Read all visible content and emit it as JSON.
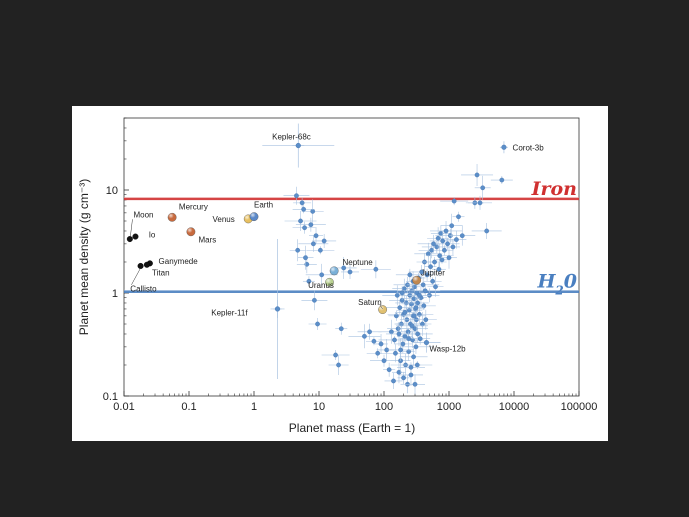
{
  "chart_data": {
    "type": "scatter",
    "xlabel": "Planet mass (Earth = 1)",
    "ylabel": "Planet mean density (g cm⁻³)",
    "x_scale": "log",
    "y_scale": "log",
    "xlim": [
      0.01,
      100000
    ],
    "ylim": [
      0.1,
      50
    ],
    "x_ticks": [
      "0.01",
      "0.1",
      "1",
      "10",
      "100",
      "1000",
      "10000",
      "100000"
    ],
    "y_ticks": [
      "0.1",
      "1",
      "10"
    ],
    "reference_lines": [
      {
        "label": "Iron",
        "y": 8.2,
        "color": "#d03030"
      },
      {
        "label": "H",
        "subscript": "2",
        "suffix": "0",
        "y": 1.03,
        "color": "#4a7fc0"
      }
    ],
    "solar_system": [
      {
        "name": "Moon",
        "mass": 0.0123,
        "density": 3.34,
        "color": "#111111",
        "label_mass": 0.014,
        "label_density": 5.8
      },
      {
        "name": "Io",
        "mass": 0.015,
        "density": 3.53,
        "color": "#111111",
        "label_mass": 0.024,
        "label_density": 3.7
      },
      {
        "name": "Ganymede",
        "mass": 0.025,
        "density": 1.94,
        "color": "#111111",
        "label_mass": 0.034,
        "label_density": 2.05
      },
      {
        "name": "Titan",
        "mass": 0.0225,
        "density": 1.88,
        "color": "#111111",
        "label_mass": 0.027,
        "label_density": 1.58
      },
      {
        "name": "Callisto",
        "mass": 0.018,
        "density": 1.83,
        "color": "#111111",
        "label_mass": 0.0125,
        "label_density": 1.1
      },
      {
        "name": "Mercury",
        "mass": 0.055,
        "density": 5.43,
        "color": "#c86a3e",
        "label_mass": 0.07,
        "label_density": 6.9
      },
      {
        "name": "Mars",
        "mass": 0.107,
        "density": 3.93,
        "color": "#c86a3e",
        "label_mass": 0.14,
        "label_density": 3.3
      },
      {
        "name": "Venus",
        "mass": 0.815,
        "density": 5.24,
        "color": "#e8c060",
        "label_mass": 0.23,
        "label_density": 5.2
      },
      {
        "name": "Earth",
        "mass": 1.0,
        "density": 5.51,
        "color": "#5b88c8",
        "label_mass": 1.0,
        "label_density": 7.2
      },
      {
        "name": "Neptune",
        "mass": 17.1,
        "density": 1.64,
        "color": "#7ab0d8",
        "label_mass": 23,
        "label_density": 2.0
      },
      {
        "name": "Uranus",
        "mass": 14.5,
        "density": 1.27,
        "color": "#b8d090",
        "label_mass": 6.8,
        "label_density": 1.2
      },
      {
        "name": "Saturn",
        "mass": 95.2,
        "density": 0.69,
        "color": "#e0c070",
        "label_mass": 40,
        "label_density": 0.82
      },
      {
        "name": "Jupiter",
        "mass": 318,
        "density": 1.33,
        "color": "#c08850",
        "label_mass": 370,
        "label_density": 1.58
      }
    ],
    "labeled_exoplanets": [
      {
        "name": "Kepler-68c",
        "mass": 4.8,
        "density": 27,
        "label_mass": 1.9,
        "label_density": 33
      },
      {
        "name": "Corot-3b",
        "mass": 7000,
        "density": 26,
        "label_mass": 9500,
        "label_density": 26
      },
      {
        "name": "Kepler-11f",
        "mass": 2.3,
        "density": 0.7,
        "label_mass": 0.22,
        "label_density": 0.65
      },
      {
        "name": "Wasp-12b",
        "mass": 450,
        "density": 0.33,
        "label_mass": 500,
        "label_density": 0.29
      }
    ],
    "exoplanets": [
      [
        4.8,
        27
      ],
      [
        4.5,
        8.8
      ],
      [
        5.5,
        7.5
      ],
      [
        5.2,
        5.0
      ],
      [
        6.0,
        4.3
      ],
      [
        4.7,
        2.6
      ],
      [
        7.5,
        4.6
      ],
      [
        8.0,
        6.2
      ],
      [
        9.0,
        3.6
      ],
      [
        10.5,
        2.6
      ],
      [
        6.5,
        1.9
      ],
      [
        7.0,
        1.3
      ],
      [
        8.5,
        0.85
      ],
      [
        9.5,
        0.5
      ],
      [
        11,
        1.5
      ],
      [
        12,
        3.2
      ],
      [
        6.2,
        2.2
      ],
      [
        8.2,
        3.0
      ],
      [
        5.8,
        6.5
      ],
      [
        2.3,
        0.7
      ],
      [
        18,
        0.25
      ],
      [
        20,
        0.2
      ],
      [
        22,
        0.45
      ],
      [
        24,
        1.75
      ],
      [
        30,
        1.6
      ],
      [
        50,
        0.38
      ],
      [
        60,
        0.42
      ],
      [
        70,
        0.34
      ],
      [
        75,
        1.7
      ],
      [
        80,
        0.26
      ],
      [
        90,
        0.32
      ],
      [
        100,
        0.22
      ],
      [
        110,
        0.28
      ],
      [
        120,
        0.18
      ],
      [
        130,
        0.42
      ],
      [
        140,
        0.14
      ],
      [
        145,
        0.35
      ],
      [
        150,
        0.26
      ],
      [
        155,
        0.6
      ],
      [
        160,
        0.95
      ],
      [
        165,
        0.45
      ],
      [
        170,
        0.17
      ],
      [
        175,
        0.72
      ],
      [
        180,
        0.22
      ],
      [
        185,
        0.5
      ],
      [
        190,
        0.85
      ],
      [
        195,
        0.32
      ],
      [
        200,
        0.62
      ],
      [
        205,
        1.1
      ],
      [
        210,
        0.38
      ],
      [
        215,
        0.2
      ],
      [
        220,
        0.8
      ],
      [
        225,
        0.55
      ],
      [
        230,
        1.2
      ],
      [
        235,
        0.42
      ],
      [
        240,
        0.27
      ],
      [
        245,
        0.68
      ],
      [
        250,
        0.95
      ],
      [
        255,
        0.5
      ],
      [
        260,
        0.16
      ],
      [
        265,
        0.78
      ],
      [
        270,
        1.05
      ],
      [
        275,
        0.35
      ],
      [
        280,
        0.6
      ],
      [
        285,
        0.24
      ],
      [
        290,
        0.88
      ],
      [
        295,
        1.15
      ],
      [
        300,
        0.45
      ],
      [
        305,
        0.7
      ],
      [
        310,
        0.3
      ],
      [
        315,
        0.55
      ],
      [
        320,
        1.0
      ],
      [
        325,
        0.2
      ],
      [
        330,
        0.8
      ],
      [
        340,
        1.4
      ],
      [
        350,
        0.62
      ],
      [
        360,
        0.36
      ],
      [
        370,
        0.9
      ],
      [
        380,
        1.6
      ],
      [
        390,
        0.5
      ],
      [
        400,
        1.2
      ],
      [
        410,
        0.75
      ],
      [
        420,
        2.0
      ],
      [
        430,
        1.05
      ],
      [
        440,
        0.55
      ],
      [
        460,
        1.5
      ],
      [
        480,
        2.4
      ],
      [
        500,
        0.95
      ],
      [
        520,
        1.8
      ],
      [
        540,
        2.6
      ],
      [
        560,
        1.3
      ],
      [
        580,
        3.0
      ],
      [
        600,
        2.0
      ],
      [
        620,
        1.15
      ],
      [
        650,
        2.8
      ],
      [
        680,
        3.4
      ],
      [
        700,
        1.7
      ],
      [
        720,
        2.3
      ],
      [
        750,
        3.8
      ],
      [
        780,
        2.1
      ],
      [
        800,
        3.2
      ],
      [
        850,
        2.6
      ],
      [
        900,
        4.0
      ],
      [
        950,
        3.0
      ],
      [
        1000,
        2.2
      ],
      [
        1050,
        3.6
      ],
      [
        1100,
        4.5
      ],
      [
        1150,
        2.8
      ],
      [
        1200,
        7.8
      ],
      [
        1300,
        3.3
      ],
      [
        1400,
        5.5
      ],
      [
        1600,
        3.6
      ],
      [
        2500,
        7.5
      ],
      [
        2700,
        14
      ],
      [
        3000,
        7.5
      ],
      [
        3300,
        10.5
      ],
      [
        3800,
        4.0
      ],
      [
        6500,
        12.5
      ],
      [
        230,
        0.13
      ],
      [
        260,
        0.19
      ],
      [
        300,
        0.13
      ],
      [
        200,
        0.15
      ],
      [
        180,
        0.28
      ],
      [
        240,
        0.36
      ],
      [
        270,
        0.48
      ],
      [
        290,
        0.6
      ],
      [
        310,
        0.72
      ],
      [
        330,
        0.4
      ],
      [
        350,
        0.95
      ],
      [
        280,
        1.3
      ],
      [
        250,
        1.5
      ],
      [
        210,
        0.65
      ],
      [
        190,
        1.0
      ],
      [
        170,
        0.4
      ]
    ]
  }
}
